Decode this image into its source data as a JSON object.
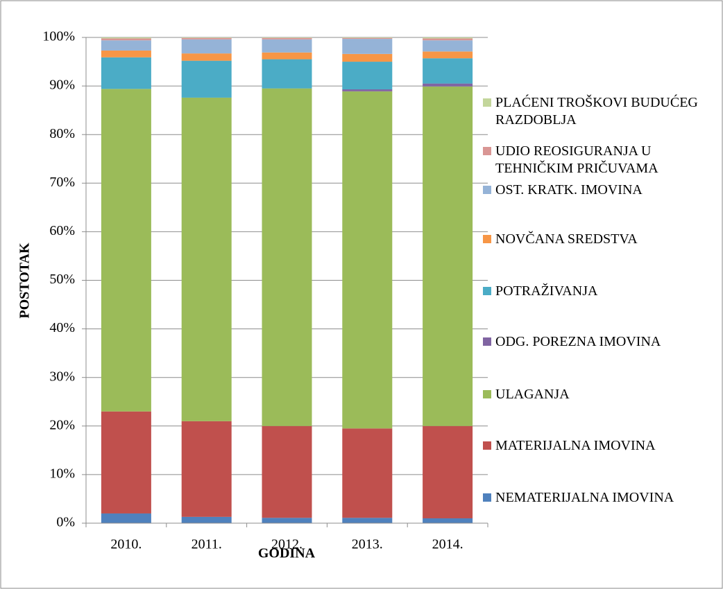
{
  "chart_data": {
    "type": "stacked_bar_percent",
    "x_label": "GODINA",
    "y_label": "POSTOTAK",
    "categories": [
      "2010.",
      "2011.",
      "2012.",
      "2013.",
      "2014."
    ],
    "series": [
      {
        "name": "NEMATERIJALNA IMOVINA",
        "color": "#4f81bd",
        "values": [
          2.0,
          1.3,
          1.1,
          1.1,
          1.0
        ]
      },
      {
        "name": "MATERIJALNA IMOVINA",
        "color": "#c0504d",
        "values": [
          21.0,
          19.7,
          18.9,
          18.4,
          19.0
        ]
      },
      {
        "name": "ULAGANJA",
        "color": "#9bbb59",
        "values": [
          66.4,
          66.6,
          69.5,
          69.4,
          69.9
        ]
      },
      {
        "name": "ODG. POREZNA IMOVINA",
        "color": "#8064a2",
        "values": [
          0.0,
          0.0,
          0.0,
          0.4,
          0.6
        ]
      },
      {
        "name": "POTRAŽIVANJA",
        "color": "#4bacc6",
        "values": [
          6.5,
          7.6,
          6.0,
          5.7,
          5.2
        ]
      },
      {
        "name": "NOVČANA SREDSTVA",
        "color": "#f79646",
        "values": [
          1.4,
          1.5,
          1.4,
          1.6,
          1.4
        ]
      },
      {
        "name": "OST. KRATK. IMOVINA",
        "color": "#95b3d7",
        "values": [
          2.1,
          2.9,
          2.7,
          3.1,
          2.3
        ]
      },
      {
        "name": "UDIO REOSIGURANJA U TEHNIČKIM PRIČUVAMA",
        "color": "#d99694",
        "values": [
          0.4,
          0.3,
          0.3,
          0.2,
          0.4
        ]
      },
      {
        "name": "PLAĆENI TROŠKOVI BUDUĆEG RAZDOBLJA",
        "color": "#c3d69b",
        "values": [
          0.2,
          0.1,
          0.1,
          0.1,
          0.2
        ]
      }
    ],
    "ylim": [
      0,
      100
    ],
    "yticks": [
      {
        "value": 0,
        "label": "0%"
      },
      {
        "value": 10,
        "label": "10%"
      },
      {
        "value": 20,
        "label": "20%"
      },
      {
        "value": 30,
        "label": "30%"
      },
      {
        "value": 40,
        "label": "40%"
      },
      {
        "value": 50,
        "label": "50%"
      },
      {
        "value": 60,
        "label": "60%"
      },
      {
        "value": 70,
        "label": "70%"
      },
      {
        "value": 80,
        "label": "80%"
      },
      {
        "value": 90,
        "label": "90%"
      },
      {
        "value": 100,
        "label": "100%"
      }
    ],
    "grid": true,
    "legend": "right"
  }
}
